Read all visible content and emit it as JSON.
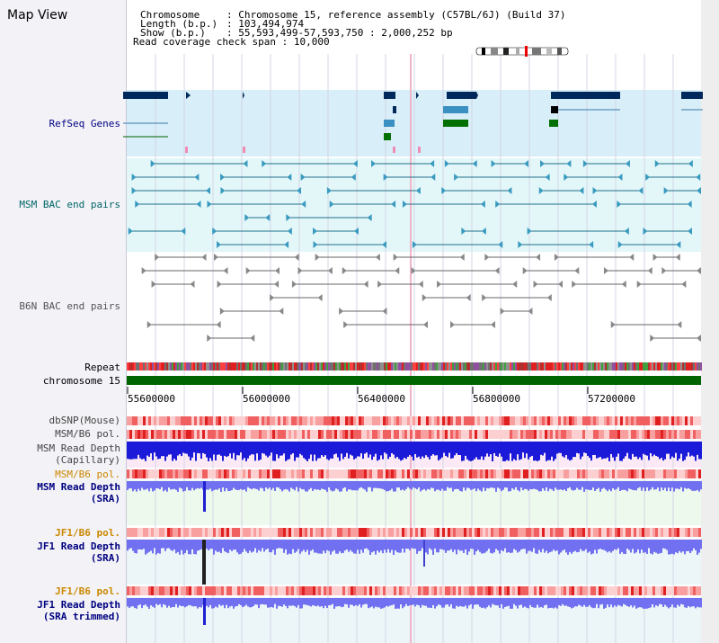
{
  "page": {
    "title": "Map View"
  },
  "header": {
    "chromosome_key": "Chromosome",
    "chromosome_value": "Chromosome 15, reference assembly (C57BL/6J) (Build 37)",
    "length_key": "Length (b.p.)",
    "length_value": "103,494,974",
    "show_key": "Show (b.p.)",
    "show_value": "55,593,499-57,593,750 : 2,000,252 bp",
    "coverage_key": "Read coverage check span",
    "coverage_value": "10,000"
  },
  "tracks": {
    "refseq": "RefSeq Genes",
    "msm_bac": "MSM BAC end pairs",
    "b6n_bac": "B6N BAC end pairs",
    "repeat": "Repeat",
    "chromosome": "chromosome 15",
    "dbsnp": "dbSNP(Mouse)",
    "msm_b6_pol_1": "MSM/B6 pol.",
    "msm_depth_cap_1": "MSM Read Depth",
    "msm_depth_cap_2": "(Capillary)",
    "msm_b6_pol_2": "MSM/B6 pol.",
    "msm_depth_sra_1": "MSM Read Depth",
    "msm_depth_sra_2": "(SRA)",
    "jf1_b6_pol_1": "JF1/B6 pol.",
    "jf1_depth_sra_1": "JF1 Read Depth",
    "jf1_depth_sra_2": "(SRA)",
    "jf1_b6_pol_2": "JF1/B6 pol.",
    "jf1_depth_trim_1": "JF1 Read Depth",
    "jf1_depth_trim_2": "(SRA trimmed)"
  },
  "axis": {
    "ticks": [
      "55600000",
      "56000000",
      "56400000",
      "56800000",
      "57200000"
    ]
  },
  "colors": {
    "refseq_label": "#000080",
    "msm_bac_label": "#006666",
    "b6n_bac_label": "#555555",
    "pol_label": "#cc8800",
    "depth_label": "#000080"
  }
}
